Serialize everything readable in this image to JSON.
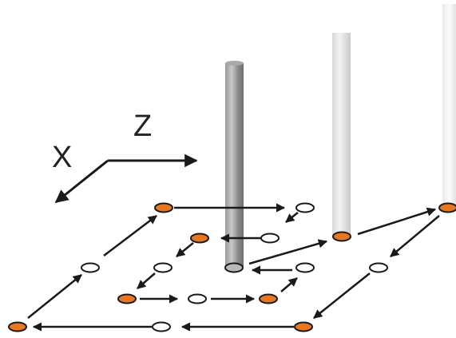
{
  "axes": {
    "x_label": "X",
    "z_label": "Z"
  },
  "colors": {
    "filled_node": "#E87722",
    "node_outline": "#1a1a1a",
    "empty_node": "#ffffff",
    "arrow": "#1a1a1a",
    "rod_dark": "#8c8c8c",
    "rod_light": "#e6e6e6"
  },
  "icons": {
    "node": "ellipse",
    "rod": "cylinder",
    "arrow": "arrow-head"
  }
}
